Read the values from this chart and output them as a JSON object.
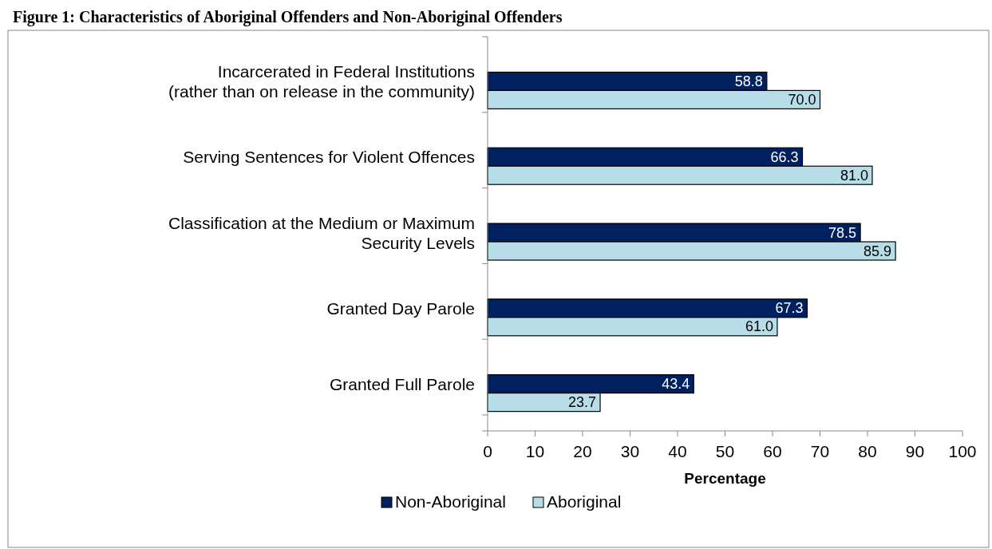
{
  "chart_data": {
    "type": "bar",
    "orientation": "horizontal",
    "title": "Figure 1: Characteristics of Aboriginal Offenders and Non-Aboriginal Offenders",
    "xlabel": "Percentage",
    "categories": [
      "Incarcerated in Federal Institutions (rather than on release in the community)",
      "Serving Sentences for Violent Offences",
      "Classification at the Medium or Maximum Security Levels",
      "Granted Day Parole",
      "Granted Full Parole"
    ],
    "series": [
      {
        "name": "Non-Aboriginal",
        "color": "#002060",
        "values": [
          58.8,
          66.3,
          78.5,
          67.3,
          43.4
        ],
        "value_labels": [
          "58.8",
          "66.3",
          "78.5",
          "67.3",
          "43.4"
        ]
      },
      {
        "name": "Aboriginal",
        "color": "#b7dee8",
        "values": [
          70.0,
          81.0,
          85.9,
          61.0,
          23.7
        ],
        "value_labels": [
          "70.0",
          "81.0",
          "85.9",
          "61.0",
          "23.7"
        ]
      }
    ],
    "xlim": [
      0,
      100
    ],
    "xticks": [
      0,
      10,
      20,
      30,
      40,
      50,
      60,
      70,
      80,
      90,
      100
    ],
    "legend": "bottom",
    "grid": false
  }
}
